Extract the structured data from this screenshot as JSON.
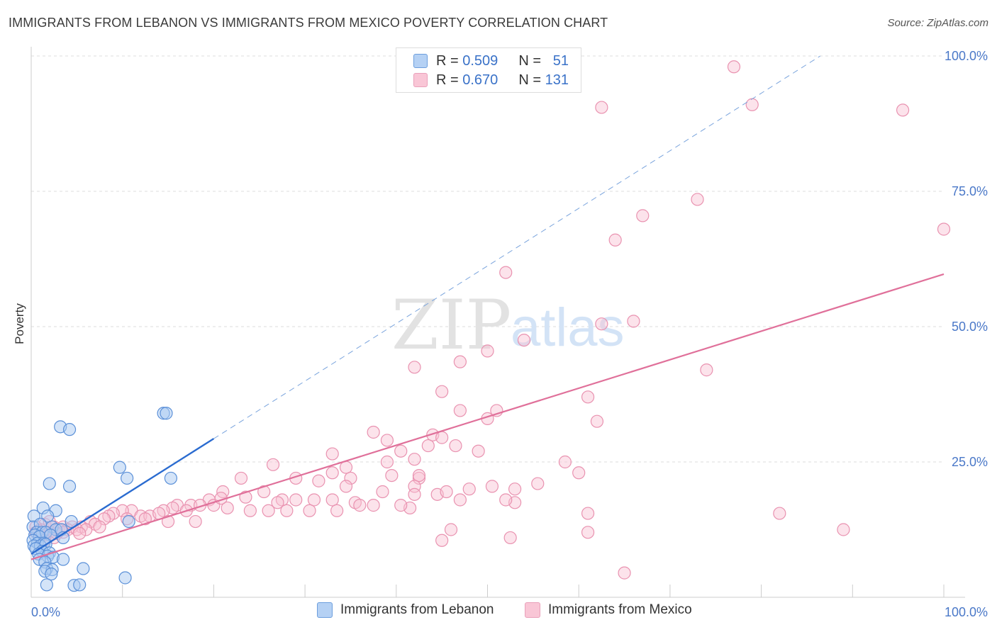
{
  "header": {
    "title": "IMMIGRANTS FROM LEBANON VS IMMIGRANTS FROM MEXICO POVERTY CORRELATION CHART",
    "source": "Source: ZipAtlas.com"
  },
  "legend": {
    "rows": [
      {
        "r_label": "R =",
        "r_value": "0.509",
        "n_label": "N =",
        "n_value": "51"
      },
      {
        "r_label": "R =",
        "r_value": "0.670",
        "n_label": "N =",
        "n_value": "131"
      }
    ]
  },
  "watermark": {
    "part1": "ZIP",
    "part2": "atlas"
  },
  "colors": {
    "lebanon_fill": "#a9c9f2",
    "lebanon_stroke": "#5b90d8",
    "lebanon_line": "#2a6bd0",
    "mexico_fill": "#f8c0d2",
    "mexico_stroke": "#e992b0",
    "mexico_line": "#e0709a",
    "axis_text": "#4a78c8",
    "grid": "#dddddd"
  },
  "chart_data": {
    "type": "scatter",
    "title": "IMMIGRANTS FROM LEBANON VS IMMIGRANTS FROM MEXICO POVERTY CORRELATION CHART",
    "xlabel": "",
    "ylabel": "Poverty",
    "xlim": [
      0,
      100
    ],
    "ylim": [
      0,
      100
    ],
    "x_tick_labels": [
      "0.0%",
      "100.0%"
    ],
    "y_ticks": [
      25,
      50,
      75,
      100
    ],
    "y_tick_labels": [
      "25.0%",
      "50.0%",
      "75.0%",
      "100.0%"
    ],
    "grid": true,
    "series": [
      {
        "name": "Immigrants from Lebanon",
        "r": 0.509,
        "n": 51,
        "trend": {
          "x": [
            0,
            20
          ],
          "y": [
            8,
            29.3
          ]
        },
        "trend_extension": {
          "x": [
            20,
            100
          ],
          "y": [
            29.3,
            114.4
          ]
        },
        "points": [
          [
            3.2,
            31.5
          ],
          [
            4.2,
            31
          ],
          [
            14.5,
            34
          ],
          [
            14.8,
            34
          ],
          [
            9.7,
            24
          ],
          [
            10.5,
            22
          ],
          [
            2,
            21
          ],
          [
            4.2,
            20.5
          ],
          [
            15.3,
            22
          ],
          [
            1.3,
            16.5
          ],
          [
            2.7,
            16
          ],
          [
            0.3,
            15
          ],
          [
            1.8,
            15
          ],
          [
            4.4,
            14
          ],
          [
            10.7,
            14
          ],
          [
            0.2,
            13
          ],
          [
            1.0,
            13.5
          ],
          [
            2.3,
            13
          ],
          [
            2.7,
            12.5
          ],
          [
            3.3,
            12.5
          ],
          [
            0.6,
            12
          ],
          [
            1.2,
            12
          ],
          [
            1.6,
            12
          ],
          [
            0.4,
            11.5
          ],
          [
            0.9,
            11.2
          ],
          [
            2.1,
            11.5
          ],
          [
            3.5,
            11
          ],
          [
            0.2,
            10.5
          ],
          [
            0.7,
            10
          ],
          [
            1.4,
            10
          ],
          [
            0.3,
            9.5
          ],
          [
            1.0,
            9.5
          ],
          [
            1.6,
            9.8
          ],
          [
            0.5,
            9
          ],
          [
            1.2,
            8.5
          ],
          [
            2.0,
            8.2
          ],
          [
            0.8,
            8
          ],
          [
            1.8,
            7.6
          ],
          [
            2.4,
            7.4
          ],
          [
            0.9,
            7.0
          ],
          [
            1.5,
            6.5
          ],
          [
            3.5,
            7.0
          ],
          [
            1.7,
            5.3
          ],
          [
            2.3,
            5.1
          ],
          [
            1.5,
            4.8
          ],
          [
            5.7,
            5.3
          ],
          [
            2.2,
            4.3
          ],
          [
            10.3,
            3.6
          ],
          [
            1.7,
            2.3
          ],
          [
            4.7,
            2.2
          ],
          [
            5.3,
            2.3
          ]
        ]
      },
      {
        "name": "Immigrants from Mexico",
        "r": 0.67,
        "n": 131,
        "trend": {
          "x": [
            0,
            100
          ],
          "y": [
            7,
            59.7
          ]
        },
        "points": [
          [
            77,
            98
          ],
          [
            62.5,
            90.5
          ],
          [
            79,
            91
          ],
          [
            95.5,
            90
          ],
          [
            73,
            73.5
          ],
          [
            67,
            70.5
          ],
          [
            100,
            68
          ],
          [
            64,
            66
          ],
          [
            52,
            60
          ],
          [
            62.5,
            50.5
          ],
          [
            66,
            51
          ],
          [
            54,
            47.5
          ],
          [
            50,
            45.5
          ],
          [
            47,
            43.5
          ],
          [
            42,
            42.5
          ],
          [
            74,
            42
          ],
          [
            45,
            38
          ],
          [
            61,
            37
          ],
          [
            47,
            34.5
          ],
          [
            51,
            34.5
          ],
          [
            62,
            32.5
          ],
          [
            50,
            33
          ],
          [
            37.5,
            30.5
          ],
          [
            44,
            30
          ],
          [
            45,
            29.5
          ],
          [
            39,
            29
          ],
          [
            43.5,
            28
          ],
          [
            46.5,
            28
          ],
          [
            40.5,
            27
          ],
          [
            49,
            27
          ],
          [
            33,
            26.5
          ],
          [
            42,
            25.5
          ],
          [
            39,
            25
          ],
          [
            58.5,
            25
          ],
          [
            34.5,
            24
          ],
          [
            33,
            23
          ],
          [
            39.5,
            22.5
          ],
          [
            26.5,
            24.5
          ],
          [
            42.5,
            22
          ],
          [
            35,
            22
          ],
          [
            60,
            23
          ],
          [
            42.5,
            22.5
          ],
          [
            29,
            22
          ],
          [
            31.5,
            21.5
          ],
          [
            23,
            22
          ],
          [
            55.5,
            21
          ],
          [
            34.5,
            20.5
          ],
          [
            42,
            20.5
          ],
          [
            48,
            20
          ],
          [
            50.5,
            20.5
          ],
          [
            53,
            20
          ],
          [
            25.5,
            19.5
          ],
          [
            38.5,
            19.5
          ],
          [
            44.5,
            19
          ],
          [
            45.5,
            19.5
          ],
          [
            42,
            19
          ],
          [
            21,
            19.5
          ],
          [
            23.5,
            18.5
          ],
          [
            27.5,
            18
          ],
          [
            29,
            18
          ],
          [
            31,
            18
          ],
          [
            27,
            17.5
          ],
          [
            33,
            18
          ],
          [
            35.5,
            17.5
          ],
          [
            37.5,
            17
          ],
          [
            36,
            17
          ],
          [
            41.5,
            16.5
          ],
          [
            47,
            18
          ],
          [
            19.5,
            18
          ],
          [
            20,
            17
          ],
          [
            17.5,
            17
          ],
          [
            18.5,
            17
          ],
          [
            21.5,
            16.5
          ],
          [
            16,
            17
          ],
          [
            15.5,
            16.5
          ],
          [
            14.5,
            16
          ],
          [
            17,
            16
          ],
          [
            24,
            16
          ],
          [
            26,
            16
          ],
          [
            28,
            16
          ],
          [
            30.5,
            16
          ],
          [
            33.5,
            16
          ],
          [
            40.5,
            17
          ],
          [
            53,
            17.5
          ],
          [
            52,
            18
          ],
          [
            61,
            15.5
          ],
          [
            11,
            16
          ],
          [
            12,
            15
          ],
          [
            13,
            15
          ],
          [
            14,
            15.5
          ],
          [
            10,
            16
          ],
          [
            9,
            15.5
          ],
          [
            8.5,
            15
          ],
          [
            10.5,
            14.5
          ],
          [
            12.5,
            14.5
          ],
          [
            15,
            14
          ],
          [
            18,
            14
          ],
          [
            8,
            14.5
          ],
          [
            6.5,
            14
          ],
          [
            7,
            13.5
          ],
          [
            5.5,
            13
          ],
          [
            7.5,
            13
          ],
          [
            4.5,
            13
          ],
          [
            3.5,
            13
          ],
          [
            2.5,
            13
          ],
          [
            1.5,
            13.5
          ],
          [
            3,
            12.5
          ],
          [
            2,
            12
          ],
          [
            4,
            12.5
          ],
          [
            5,
            12.5
          ],
          [
            6,
            12.5
          ],
          [
            1,
            12.5
          ],
          [
            0.5,
            12
          ],
          [
            1.5,
            11.5
          ],
          [
            2.5,
            11
          ],
          [
            1,
            11
          ],
          [
            3.5,
            12
          ],
          [
            0.5,
            13
          ],
          [
            2,
            14
          ],
          [
            82,
            15.5
          ],
          [
            89,
            12.5
          ],
          [
            52.5,
            11
          ],
          [
            46,
            12.5
          ],
          [
            61,
            12
          ],
          [
            45,
            10.5
          ],
          [
            65,
            4.5
          ],
          [
            1.5,
            10.5
          ],
          [
            0.8,
            12.3
          ],
          [
            2.8,
            11.8
          ],
          [
            5.3,
            11.8
          ],
          [
            20.8,
            18.3
          ]
        ]
      }
    ]
  }
}
